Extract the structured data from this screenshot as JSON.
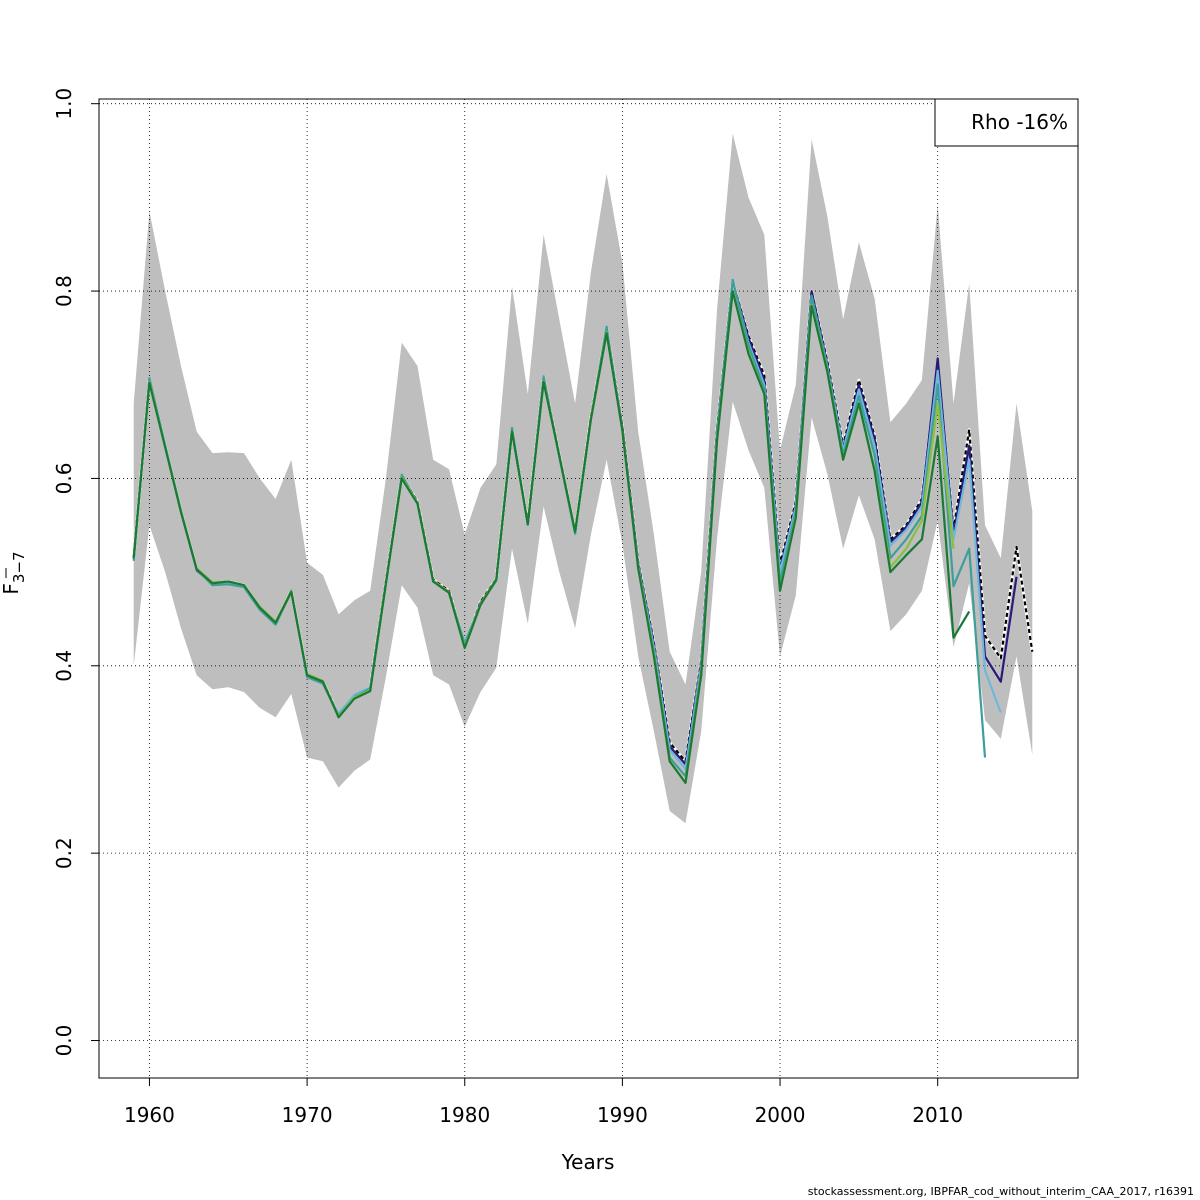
{
  "footer_text": "stockassessment.org, IBPFAR_cod_without_interim_CAA_2017, r16391",
  "chart_data": {
    "type": "line",
    "xlabel": "Years",
    "ylabel_main": "F",
    "ylabel_sub": "3−7",
    "xlim": [
      1956.8,
      2018.9
    ],
    "ylim": [
      -0.04,
      1.005
    ],
    "x_ticks": [
      1960,
      1970,
      1980,
      1990,
      2000,
      2010
    ],
    "y_ticks": [
      0.0,
      0.2,
      0.4,
      0.6,
      0.8,
      1.0
    ],
    "x_tick_labels": [
      "1960",
      "1970",
      "1980",
      "1990",
      "2000",
      "2010"
    ],
    "y_tick_labels": [
      "0.0",
      "0.2",
      "0.4",
      "0.6",
      "0.8",
      "1.0"
    ],
    "grid": true,
    "legend": {
      "text": "Rho -16%",
      "position": "top-right"
    },
    "band": {
      "color": "#bebebe",
      "x": [
        1959,
        1960,
        1961,
        1962,
        1963,
        1964,
        1965,
        1966,
        1967,
        1968,
        1969,
        1970,
        1971,
        1972,
        1973,
        1974,
        1975,
        1976,
        1977,
        1978,
        1979,
        1980,
        1981,
        1982,
        1983,
        1984,
        1985,
        1986,
        1987,
        1988,
        1989,
        1990,
        1991,
        1992,
        1993,
        1994,
        1995,
        1996,
        1997,
        1998,
        1999,
        2000,
        2001,
        2002,
        2003,
        2004,
        2005,
        2006,
        2007,
        2008,
        2009,
        2010,
        2011,
        2012,
        2013,
        2014,
        2015,
        2016
      ],
      "upper": [
        0.68,
        0.885,
        0.8,
        0.72,
        0.65,
        0.627,
        0.628,
        0.627,
        0.6,
        0.578,
        0.62,
        0.51,
        0.497,
        0.455,
        0.47,
        0.48,
        0.6,
        0.745,
        0.72,
        0.62,
        0.61,
        0.54,
        0.59,
        0.615,
        0.805,
        0.69,
        0.86,
        0.77,
        0.68,
        0.82,
        0.925,
        0.83,
        0.65,
        0.54,
        0.415,
        0.38,
        0.5,
        0.78,
        0.968,
        0.9,
        0.86,
        0.63,
        0.7,
        0.962,
        0.88,
        0.77,
        0.852,
        0.792,
        0.66,
        0.68,
        0.705,
        0.892,
        0.68,
        0.808,
        0.55,
        0.515,
        0.68,
        0.565
      ],
      "lower": [
        0.4,
        0.55,
        0.5,
        0.44,
        0.39,
        0.375,
        0.377,
        0.372,
        0.355,
        0.345,
        0.37,
        0.302,
        0.298,
        0.27,
        0.288,
        0.3,
        0.388,
        0.486,
        0.462,
        0.39,
        0.38,
        0.335,
        0.372,
        0.398,
        0.525,
        0.445,
        0.57,
        0.5,
        0.44,
        0.54,
        0.62,
        0.53,
        0.41,
        0.33,
        0.245,
        0.232,
        0.33,
        0.535,
        0.682,
        0.63,
        0.59,
        0.41,
        0.475,
        0.665,
        0.605,
        0.525,
        0.582,
        0.535,
        0.437,
        0.455,
        0.48,
        0.555,
        0.42,
        0.488,
        0.342,
        0.322,
        0.41,
        0.305
      ]
    },
    "series": [
      {
        "color": "#000000",
        "dashed": true,
        "x_start": 1959,
        "values": [
          0.515,
          0.705,
          0.635,
          0.565,
          0.503,
          0.488,
          0.49,
          0.486,
          0.462,
          0.446,
          0.48,
          0.39,
          0.383,
          0.348,
          0.368,
          0.377,
          0.49,
          0.603,
          0.575,
          0.492,
          0.48,
          0.422,
          0.468,
          0.493,
          0.652,
          0.552,
          0.708,
          0.625,
          0.543,
          0.665,
          0.76,
          0.655,
          0.51,
          0.425,
          0.318,
          0.298,
          0.405,
          0.652,
          0.81,
          0.752,
          0.71,
          0.508,
          0.575,
          0.8,
          0.725,
          0.635,
          0.705,
          0.645,
          0.535,
          0.55,
          0.578,
          0.72,
          0.545,
          0.652,
          0.432,
          0.408,
          0.527,
          0.415
        ]
      },
      {
        "color": "#271a7a",
        "dashed": false,
        "x_start": 1959,
        "values": [
          0.515,
          0.704,
          0.634,
          0.564,
          0.502,
          0.487,
          0.489,
          0.485,
          0.461,
          0.445,
          0.479,
          0.389,
          0.382,
          0.347,
          0.367,
          0.376,
          0.489,
          0.602,
          0.574,
          0.491,
          0.479,
          0.421,
          0.467,
          0.492,
          0.651,
          0.551,
          0.707,
          0.624,
          0.542,
          0.664,
          0.759,
          0.654,
          0.509,
          0.423,
          0.314,
          0.295,
          0.403,
          0.65,
          0.81,
          0.75,
          0.705,
          0.503,
          0.572,
          0.8,
          0.722,
          0.632,
          0.7,
          0.642,
          0.532,
          0.548,
          0.575,
          0.728,
          0.54,
          0.635,
          0.41,
          0.383,
          0.495
        ]
      },
      {
        "color": "#6fb8dc",
        "dashed": false,
        "x_start": 1959,
        "values": [
          0.513,
          0.706,
          0.636,
          0.566,
          0.503,
          0.486,
          0.488,
          0.484,
          0.46,
          0.444,
          0.481,
          0.388,
          0.381,
          0.349,
          0.369,
          0.377,
          0.487,
          0.603,
          0.573,
          0.49,
          0.478,
          0.425,
          0.466,
          0.491,
          0.653,
          0.55,
          0.708,
          0.623,
          0.541,
          0.663,
          0.76,
          0.652,
          0.507,
          0.42,
          0.31,
          0.29,
          0.4,
          0.648,
          0.81,
          0.745,
          0.7,
          0.5,
          0.57,
          0.795,
          0.72,
          0.63,
          0.695,
          0.635,
          0.528,
          0.545,
          0.57,
          0.715,
          0.535,
          0.62,
          0.395,
          0.35
        ]
      },
      {
        "color": "#3f9e9a",
        "dashed": false,
        "x_start": 1959,
        "values": [
          0.512,
          0.707,
          0.635,
          0.565,
          0.503,
          0.486,
          0.487,
          0.484,
          0.46,
          0.444,
          0.48,
          0.388,
          0.381,
          0.347,
          0.366,
          0.376,
          0.487,
          0.604,
          0.574,
          0.49,
          0.478,
          0.423,
          0.466,
          0.491,
          0.654,
          0.551,
          0.709,
          0.623,
          0.541,
          0.663,
          0.762,
          0.651,
          0.505,
          0.415,
          0.302,
          0.282,
          0.395,
          0.645,
          0.812,
          0.742,
          0.695,
          0.49,
          0.565,
          0.795,
          0.718,
          0.625,
          0.688,
          0.625,
          0.515,
          0.535,
          0.56,
          0.7,
          0.485,
          0.525,
          0.302
        ]
      },
      {
        "color": "#8bbf3f",
        "dashed": false,
        "x_start": 1959,
        "values": [
          0.516,
          0.703,
          0.634,
          0.565,
          0.504,
          0.489,
          0.49,
          0.486,
          0.463,
          0.447,
          0.48,
          0.391,
          0.384,
          0.346,
          0.366,
          0.374,
          0.489,
          0.601,
          0.574,
          0.491,
          0.479,
          0.42,
          0.466,
          0.493,
          0.65,
          0.552,
          0.704,
          0.625,
          0.544,
          0.664,
          0.756,
          0.652,
          0.505,
          0.412,
          0.298,
          0.275,
          0.392,
          0.642,
          0.8,
          0.735,
          0.69,
          0.48,
          0.56,
          0.785,
          0.715,
          0.62,
          0.68,
          0.61,
          0.505,
          0.525,
          0.555,
          0.68,
          0.525
        ]
      },
      {
        "color": "#1a7a35",
        "dashed": false,
        "x_start": 1959,
        "values": [
          0.515,
          0.702,
          0.633,
          0.564,
          0.503,
          0.488,
          0.49,
          0.486,
          0.462,
          0.446,
          0.479,
          0.39,
          0.383,
          0.345,
          0.365,
          0.373,
          0.488,
          0.6,
          0.573,
          0.49,
          0.478,
          0.419,
          0.465,
          0.492,
          0.65,
          0.551,
          0.703,
          0.624,
          0.543,
          0.663,
          0.755,
          0.651,
          0.504,
          0.41,
          0.298,
          0.275,
          0.39,
          0.64,
          0.8,
          0.733,
          0.69,
          0.48,
          0.558,
          0.784,
          0.714,
          0.62,
          0.68,
          0.608,
          0.5,
          0.518,
          0.535,
          0.645,
          0.43,
          0.458
        ]
      }
    ]
  }
}
